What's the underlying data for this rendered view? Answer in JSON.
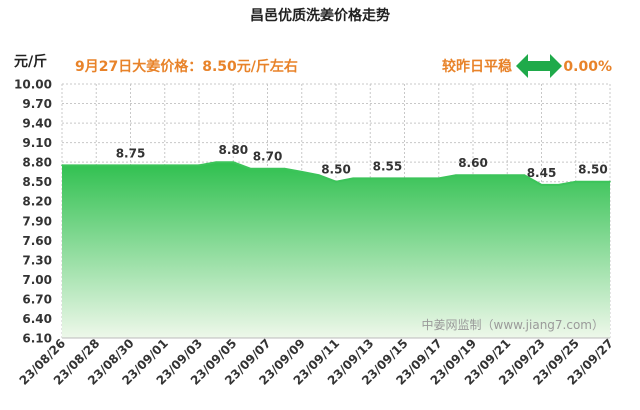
{
  "chart_data": {
    "type": "area",
    "title": "昌邑优质洗姜价格走势",
    "unit": "元/斤",
    "headline": "9月27日大姜价格：8.50元/斤左右",
    "change_label": "较昨日平稳",
    "change_value": "0.00%",
    "watermark": "中姜网监制（www.jiang7.com）",
    "ylim": [
      6.1,
      10.0
    ],
    "y_ticks": [
      "10.00",
      "9.70",
      "9.40",
      "9.10",
      "8.80",
      "8.50",
      "8.20",
      "7.90",
      "7.60",
      "7.30",
      "7.00",
      "6.70",
      "6.40",
      "6.10"
    ],
    "grid": true,
    "x_ticks": [
      "23/08/26",
      "23/08/28",
      "23/08/30",
      "23/09/01",
      "23/09/03",
      "23/09/05",
      "23/09/07",
      "23/09/09",
      "23/09/11",
      "23/09/13",
      "23/09/15",
      "23/09/17",
      "23/09/19",
      "23/09/21",
      "23/09/23",
      "23/09/25",
      "23/09/27"
    ],
    "x": [
      "23/08/26",
      "23/08/27",
      "23/08/28",
      "23/08/29",
      "23/08/30",
      "23/08/31",
      "23/09/01",
      "23/09/02",
      "23/09/03",
      "23/09/04",
      "23/09/05",
      "23/09/06",
      "23/09/07",
      "23/09/08",
      "23/09/09",
      "23/09/10",
      "23/09/11",
      "23/09/12",
      "23/09/13",
      "23/09/14",
      "23/09/15",
      "23/09/16",
      "23/09/17",
      "23/09/18",
      "23/09/19",
      "23/09/20",
      "23/09/21",
      "23/09/22",
      "23/09/23",
      "23/09/24",
      "23/09/25",
      "23/09/26",
      "23/09/27"
    ],
    "values": [
      8.75,
      8.75,
      8.75,
      8.75,
      8.75,
      8.75,
      8.75,
      8.75,
      8.75,
      8.8,
      8.8,
      8.7,
      8.7,
      8.7,
      8.65,
      8.6,
      8.5,
      8.55,
      8.55,
      8.55,
      8.55,
      8.55,
      8.55,
      8.6,
      8.6,
      8.6,
      8.6,
      8.6,
      8.45,
      8.45,
      8.5,
      8.5,
      8.5
    ],
    "data_labels": [
      {
        "x": "23/08/30",
        "label": "8.75"
      },
      {
        "x": "23/09/05",
        "label": "8.80"
      },
      {
        "x": "23/09/07",
        "label": "8.70"
      },
      {
        "x": "23/09/11",
        "label": "8.50"
      },
      {
        "x": "23/09/14",
        "label": "8.55"
      },
      {
        "x": "23/09/19",
        "label": "8.60"
      },
      {
        "x": "23/09/23",
        "label": "8.45"
      },
      {
        "x": "23/09/26",
        "label": "8.50"
      }
    ],
    "colors": {
      "line": "#3cc45a",
      "area_top": "#2fc04f",
      "area_bottom": "#eef8ea",
      "headline": "#e8832a",
      "change": "#e8832a",
      "arrow": "#1faa4a",
      "grid": "#c8c8c8",
      "text": "#333333",
      "watermark": "#9a9a9a"
    }
  }
}
